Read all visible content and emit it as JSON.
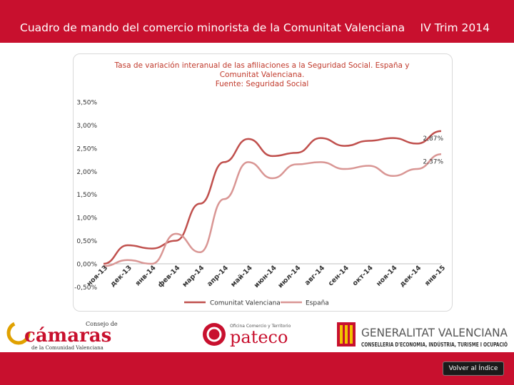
{
  "header": {
    "title": "Cuadro de mando del comercio minorista de la Comunitat Valenciana",
    "period": "IV Trim 2014"
  },
  "chart_title_lines": [
    "Tasa de variación interanual de las afiliaciones a la Seguridad Social. España y",
    "Comunitat Valenciana.",
    "Fuente: Seguridad Social"
  ],
  "chart_data": {
    "type": "line",
    "categories": [
      "ноя-13",
      "дек-13",
      "янв-14",
      "фев-14",
      "мар-14",
      "апр-14",
      "май-14",
      "июн-14",
      "июл-14",
      "авг-14",
      "сен-14",
      "окт-14",
      "ноя-14",
      "дек-14",
      "янв-15"
    ],
    "series": [
      {
        "name": "Comunitat Valenciana",
        "color": "#c0504d",
        "values": [
          0.0,
          0.4,
          0.33,
          0.5,
          1.3,
          2.2,
          2.7,
          2.33,
          2.4,
          2.72,
          2.55,
          2.66,
          2.72,
          2.6,
          2.87
        ]
      },
      {
        "name": "España",
        "color": "#d99694",
        "values": [
          -0.05,
          0.08,
          0.0,
          0.65,
          0.25,
          1.4,
          2.2,
          1.85,
          2.15,
          2.2,
          2.05,
          2.12,
          1.9,
          2.05,
          2.37
        ]
      }
    ],
    "end_labels": [
      "2,87%",
      "2,37%"
    ],
    "y_ticks": [
      "3,50%",
      "3,00%",
      "2,50%",
      "2,00%",
      "1,50%",
      "1,00%",
      "0,50%",
      "0,00%",
      "-0,50%"
    ],
    "y_tick_values": [
      3.5,
      3.0,
      2.5,
      2.0,
      1.5,
      1.0,
      0.5,
      0.0,
      -0.5
    ],
    "ylim": [
      -0.5,
      3.5
    ],
    "grid": false,
    "legend_position": "bottom"
  },
  "logos": {
    "camaras_top": "Consejo de",
    "camaras_name": "cámaras",
    "camaras_sub": "de la Comunidad Valenciana",
    "pateco_small": "Oficina Comercio y Territorio",
    "pateco_name": "pateco",
    "gva_name": "GENERALITAT VALENCIANA",
    "gva_sub": "CONSELLERIA D'ECONOMIA, INDÚSTRIA, TURISME I OCUPACIÓ"
  },
  "back_button": "Volver al Índice"
}
